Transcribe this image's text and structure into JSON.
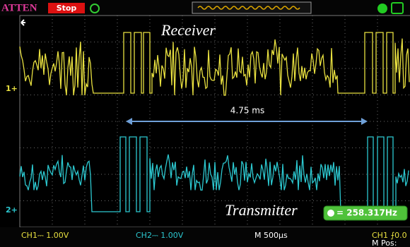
{
  "header": {
    "atten": "ATTEN",
    "status": "Stop"
  },
  "labels": {
    "receiver": "Receiver",
    "interval": "4.75 ms",
    "transmitter": "Transmitter"
  },
  "markers": {
    "ch1": "1+",
    "ch2": "2+"
  },
  "freq": {
    "value": "= 258.317Hz"
  },
  "footer": {
    "ch1": "CH1⎓ 1.00V",
    "ch2": "CH2⎓ 1.00V",
    "timebase": "M 500μs",
    "trigger": "CH1 ⨍0.0",
    "position": "M Pos:"
  }
}
